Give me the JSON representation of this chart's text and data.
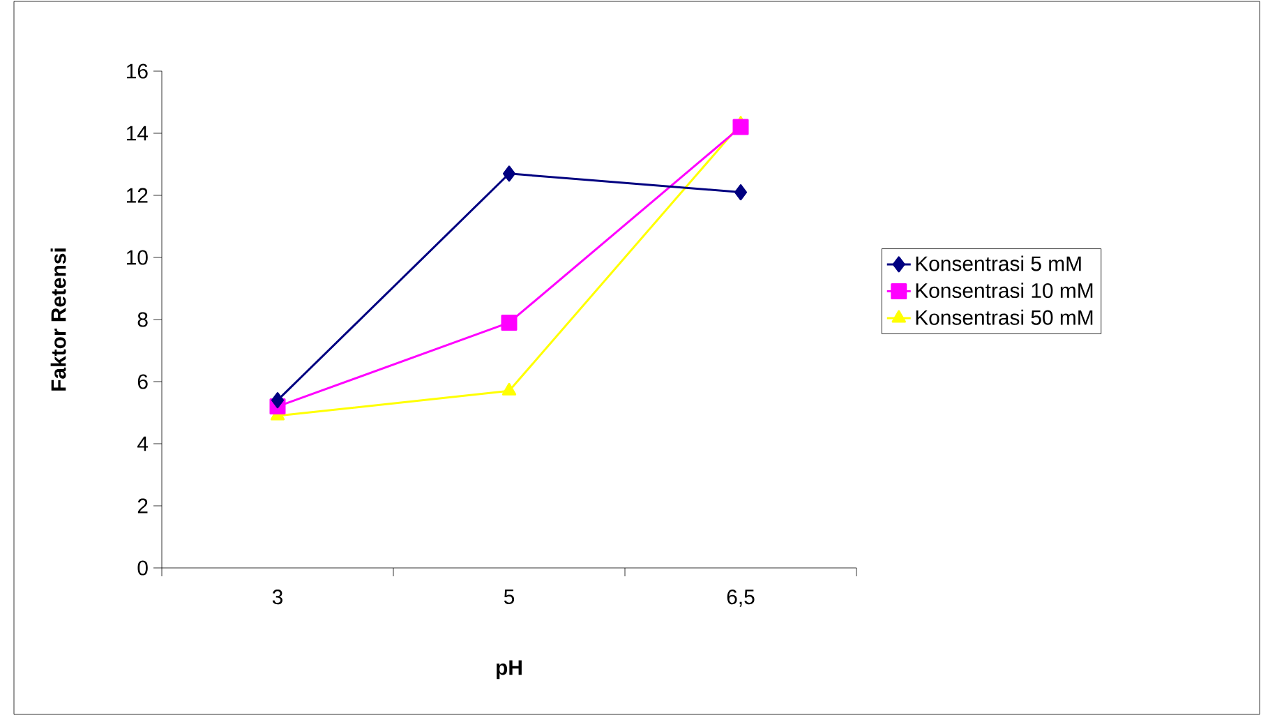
{
  "chart_data": {
    "type": "line",
    "xlabel": "pH",
    "ylabel": "Faktor Retensi",
    "categories": [
      "3",
      "5",
      "6,5"
    ],
    "ylim": [
      0,
      16
    ],
    "yticks": [
      0,
      2,
      4,
      6,
      8,
      10,
      12,
      14,
      16
    ],
    "grid": false,
    "legend": "right",
    "series": [
      {
        "name": "Konsentrasi 5 mM",
        "color": "#000080",
        "marker": "diamond",
        "values": [
          5.4,
          12.7,
          12.1
        ]
      },
      {
        "name": "Konsentrasi 10 mM",
        "color": "#ff00ff",
        "marker": "square",
        "values": [
          5.2,
          7.9,
          14.2
        ]
      },
      {
        "name": "Konsentrasi 50 mM",
        "color": "#ffff00",
        "marker": "triangle",
        "values": [
          4.9,
          5.7,
          14.3
        ]
      }
    ]
  }
}
